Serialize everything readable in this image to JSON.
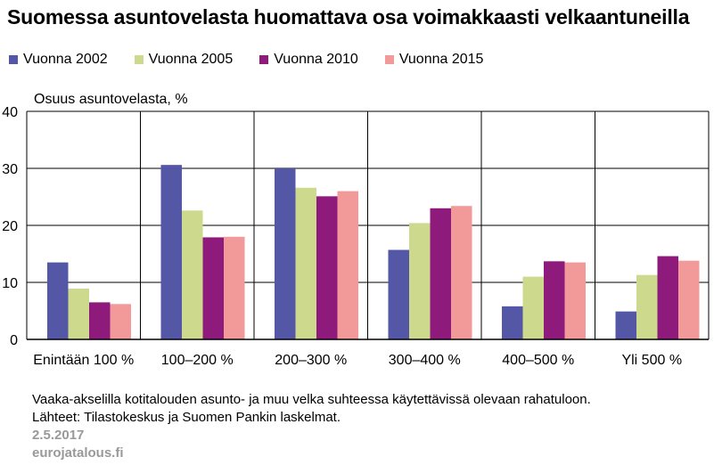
{
  "title": "Suomessa asuntovelasta huomattava osa voimakkaasti velkaantuneilla",
  "y_unit_label": "Osuus asuntovelasta,  %",
  "notes": [
    "Vaaka-akselilla kotitalouden asunto- ja muu velka suhteessa käytettävissä olevaan rahatuloon.",
    "Lähteet: Tilastokeskus ja Suomen Pankin laskelmat."
  ],
  "date": "2.5.2017",
  "site": "eurojatalous.fi",
  "chart_data": {
    "type": "bar",
    "title": "Suomessa asuntovelasta huomattava osa voimakkaasti velkaantuneilla",
    "ylabel": "Osuus asuntovelasta,  %",
    "xlabel": "",
    "ylim": [
      0,
      40
    ],
    "yticks": [
      "0",
      "10",
      "20",
      "30",
      "40"
    ],
    "grid": true,
    "legend_position": "top",
    "categories": [
      "Enintään 100 %",
      "100–200 %",
      "200–300 %",
      "300–400 %",
      "400–500 %",
      "Yli 500 %"
    ],
    "series": [
      {
        "name": "Vuonna 2002",
        "color": "#5456a6",
        "values": [
          13.5,
          30.6,
          30.0,
          15.7,
          5.8,
          4.9
        ]
      },
      {
        "name": "Vuonna 2005",
        "color": "#cdd98d",
        "values": [
          8.9,
          22.6,
          26.6,
          20.4,
          11.0,
          11.3
        ]
      },
      {
        "name": "Vuonna 2010",
        "color": "#8e1b7b",
        "values": [
          6.5,
          17.9,
          25.1,
          23.0,
          13.7,
          14.6
        ]
      },
      {
        "name": "Vuonna 2015",
        "color": "#f29a9a",
        "values": [
          6.2,
          18.0,
          26.0,
          23.4,
          13.5,
          13.8
        ]
      }
    ]
  }
}
